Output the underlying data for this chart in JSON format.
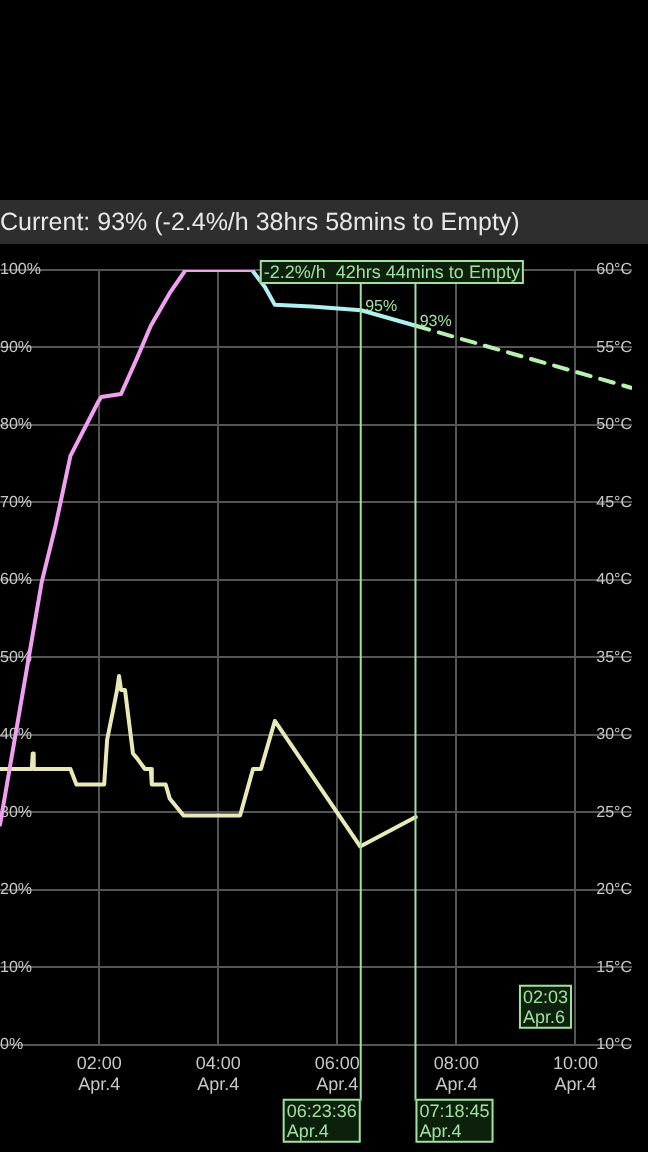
{
  "chart_data": {
    "type": "line",
    "title": "Current: 93%   (-2.4%/h  38hrs 58mins to Empty)",
    "annotations": [
      "-2.2%/h  42hrs 44mins to Empty",
      "02:03\nApr.6",
      {
        "text": "95%",
        "x": "--04-04T06:24",
        "y": 94.8
      },
      {
        "text": "93%",
        "x": "--04-04T07:19",
        "y": 92.8
      }
    ],
    "series": [
      {
        "color": "#f0a0f0",
        "x": [
          "--04-04T00:20",
          "--04-04T00:54",
          "--04-04T01:02",
          "--04-04T01:16",
          "--04-04T01:31",
          "--04-04T01:59",
          "--04-04T02:02",
          "--04-04T02:22",
          "--04-04T02:38",
          "--04-04T02:52",
          "--04-04T03:11",
          "--04-04T03:27",
          "--04-04T04:34"
        ],
        "values": [
          28.4,
          53.7,
          59.7,
          67,
          76,
          83,
          83.6,
          84,
          88.6,
          92.8,
          97,
          100,
          100
        ]
      },
      {
        "color": "#b0f0f0",
        "x": [
          "--04-04T04:34",
          "--04-04T04:47",
          "--04-04T04:57",
          "--04-04T05:34",
          "--04-04T06:24",
          "--04-04T07:19"
        ],
        "values": [
          100,
          97.8,
          95.5,
          95.3,
          94.8,
          92.8
        ]
      },
      {
        "color": "#b8f0b0",
        "line_style": "dashed",
        "x": [
          "--04-04T07:19",
          "--04-04T10:56"
        ],
        "values": [
          92.8,
          84.8
        ]
      },
      {
        "color": "#e8e8b8",
        "axis": "y2",
        "x": [
          "--04-04T00:20",
          "--04-04T00:52",
          "--04-04T00:53",
          "--04-04T00:54",
          "--04-04T01:31",
          "--04-04T01:37",
          "--04-04T02:05",
          "--04-04T02:08",
          "--04-04T02:14",
          "--04-04T02:18",
          "--04-04T02:20",
          "--04-04T02:22",
          "--04-04T02:26",
          "--04-04T02:34",
          "--04-04T02:38",
          "--04-04T02:46",
          "--04-04T02:52",
          "--04-04T02:53",
          "--04-04T03:07",
          "--04-04T03:11",
          "--04-04T03:25",
          "--04-04T04:22",
          "--04-04T04:35",
          "--04-04T04:43",
          "--04-04T04:57",
          "--04-04T06:23",
          "--04-04T07:19"
        ],
        "values": [
          27.8,
          27.8,
          28.8,
          27.8,
          27.8,
          26.8,
          26.8,
          29.7,
          31.6,
          32.9,
          33.8,
          32.9,
          32.9,
          28.8,
          28.5,
          27.8,
          27.8,
          26.8,
          26.8,
          25.9,
          24.8,
          24.8,
          27.8,
          27.8,
          30.9,
          22.8,
          24.7
        ]
      }
    ],
    "xlim": [
      "--04-04T00:20",
      "--04-04T10:57"
    ],
    "xticks": [
      {
        "value": "--04-04T02:00",
        "label": "02:00\nApr.4"
      },
      {
        "value": "--04-04T04:00",
        "label": "04:00\nApr.4"
      },
      {
        "value": "--04-04T06:00",
        "label": "06:00\nApr.4"
      },
      {
        "value": "--04-04T08:00",
        "label": "08:00\nApr.4"
      },
      {
        "value": "--04-04T10:00",
        "label": "10:00\nApr.4"
      }
    ],
    "ylim": [
      0,
      100
    ],
    "yticks": [
      {
        "value": 0,
        "label": "0%"
      },
      {
        "value": 10,
        "label": "10%"
      },
      {
        "value": 20,
        "label": "20%"
      },
      {
        "value": 30,
        "label": "30%"
      },
      {
        "value": 40,
        "label": "40%"
      },
      {
        "value": 50,
        "label": "50%"
      },
      {
        "value": 60,
        "label": "60%"
      },
      {
        "value": 70,
        "label": "70%"
      },
      {
        "value": 80,
        "label": "80%"
      },
      {
        "value": 90,
        "label": "90%"
      },
      {
        "value": 100,
        "label": "100%"
      }
    ],
    "y2lim": [
      10,
      60
    ],
    "y2ticks": [
      {
        "value": 10,
        "label": "10°C"
      },
      {
        "value": 15,
        "label": "15°C"
      },
      {
        "value": 20,
        "label": "20°C"
      },
      {
        "value": 25,
        "label": "25°C"
      },
      {
        "value": 30,
        "label": "30°C"
      },
      {
        "value": 35,
        "label": "35°C"
      },
      {
        "value": 40,
        "label": "40°C"
      },
      {
        "value": 45,
        "label": "45°C"
      },
      {
        "value": 50,
        "label": "50°C"
      },
      {
        "value": 55,
        "label": "55°C"
      },
      {
        "value": 60,
        "label": "60°C"
      }
    ],
    "ref_lines": [
      {
        "axis": "x",
        "value": "--04-04T06:23:36",
        "label": "06:23:36\nApr.4",
        "color": "#a0e0a0"
      },
      {
        "axis": "x",
        "value": "--04-04T07:18:45",
        "label": "07:18:45\nApr.4",
        "color": "#a0e0a0"
      }
    ],
    "grid": true,
    "legend": false,
    "marker": "none"
  }
}
